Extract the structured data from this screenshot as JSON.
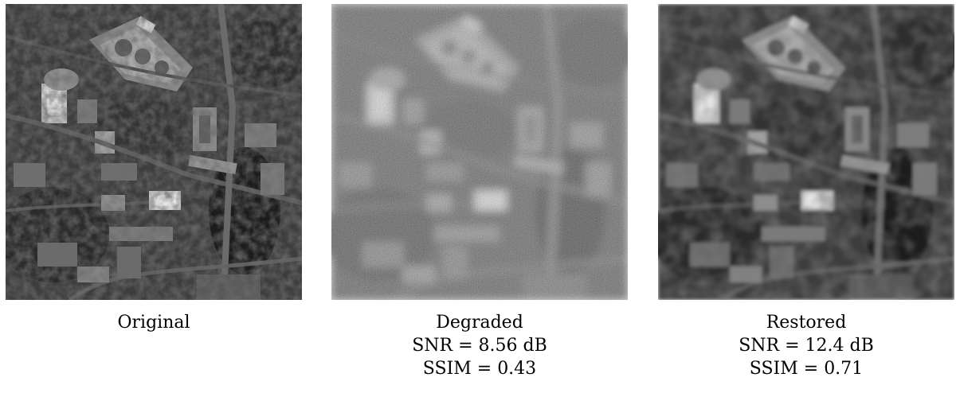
{
  "panels": [
    {
      "id": "original",
      "title": "Original",
      "snr": "",
      "ssim": ""
    },
    {
      "id": "degraded",
      "title": "Degraded",
      "snr": "SNR = 8.56 dB",
      "ssim": "SSIM = 0.43"
    },
    {
      "id": "restored",
      "title": "Restored",
      "snr": "SNR = 12.4 dB",
      "ssim": "SSIM = 0.71"
    }
  ]
}
